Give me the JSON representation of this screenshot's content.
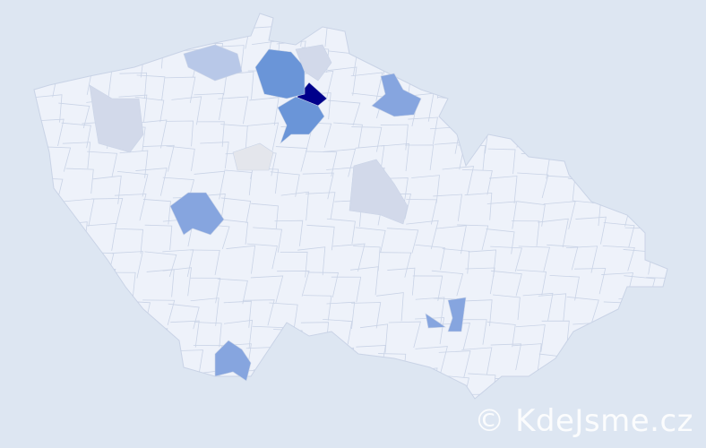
{
  "watermark": "© KdeJsme.cz",
  "colors": {
    "background": "#dde6f2",
    "base": "#eef2fa",
    "border": "#c9d3e6",
    "level_max": "#00008b",
    "level_high": "#6a95d8",
    "level_mid": "#86a5df",
    "level_low": "#b8c8e8",
    "level_pale": "#d2d9ea",
    "level_grey": "#e4e6ec"
  },
  "regions": [
    {
      "name": "max",
      "level": "level_max"
    },
    {
      "name": "high-1",
      "level": "level_high"
    },
    {
      "name": "high-2",
      "level": "level_high"
    },
    {
      "name": "mid-1",
      "level": "level_mid"
    },
    {
      "name": "mid-2",
      "level": "level_mid"
    },
    {
      "name": "mid-3",
      "level": "level_mid"
    },
    {
      "name": "mid-4",
      "level": "level_mid"
    },
    {
      "name": "mid-5",
      "level": "level_mid"
    },
    {
      "name": "low-1",
      "level": "level_low"
    },
    {
      "name": "pale-1",
      "level": "level_pale"
    },
    {
      "name": "pale-2",
      "level": "level_pale"
    },
    {
      "name": "pale-3",
      "level": "level_pale"
    },
    {
      "name": "grey-1",
      "level": "level_grey"
    }
  ]
}
